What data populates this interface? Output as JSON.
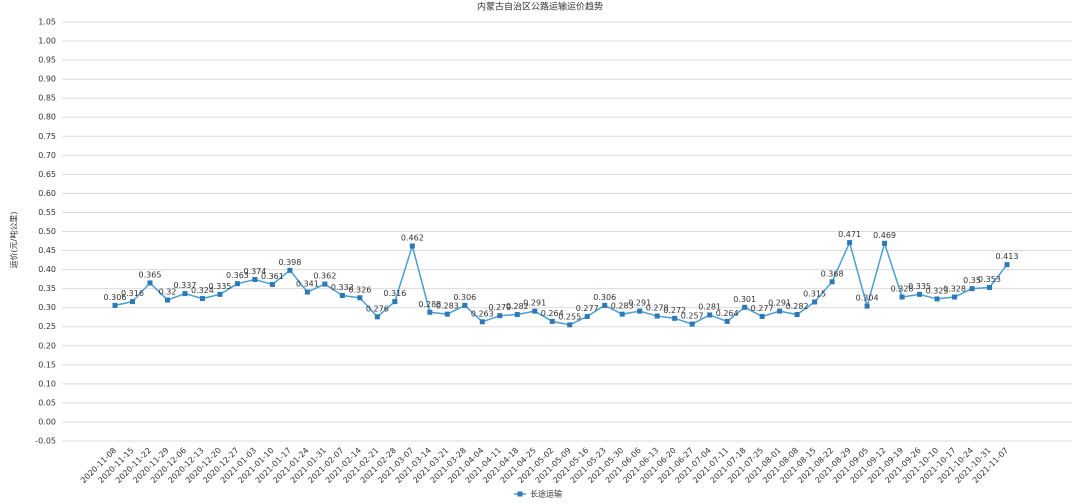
{
  "chart_data": {
    "type": "line",
    "title": "内蒙古自治区公路运输运价趋势",
    "y_label": "运价(元/吨公里)",
    "categories": [
      "2020-11-08",
      "2020-11-15",
      "2020-11-22",
      "2020-11-29",
      "2020-12-06",
      "2020-12-13",
      "2020-12-20",
      "2020-12-27",
      "2021-01-03",
      "2021-01-10",
      "2021-01-17",
      "2021-01-24",
      "2021-01-31",
      "2021-02-07",
      "2021-02-14",
      "2021-02-21",
      "2021-02-28",
      "2021-03-07",
      "2021-03-14",
      "2021-03-21",
      "2021-03-28",
      "2021-04-04",
      "2021-04-11",
      "2021-04-18",
      "2021-04-25",
      "2021-05-02",
      "2021-05-09",
      "2021-05-16",
      "2021-05-23",
      "2021-05-30",
      "2021-06-06",
      "2021-06-13",
      "2021-06-20",
      "2021-06-27",
      "2021-07-04",
      "2021-07-11",
      "2021-07-18",
      "2021-07-25",
      "2021-08-01",
      "2021-08-08",
      "2021-08-15",
      "2021-08-22",
      "2021-08-29",
      "2021-09-05",
      "2021-09-12",
      "2021-09-19",
      "2021-09-26",
      "2021-10-10",
      "2021-10-17",
      "2021-10-24",
      "2021-10-31",
      "2021-11-07"
    ],
    "series": [
      {
        "name": "长途运输",
        "color": "#4a9fd4",
        "marker_color": "#2f78b8",
        "values": [
          0.306,
          0.316,
          0.365,
          0.32,
          0.337,
          0.324,
          0.335,
          0.363,
          0.374,
          0.361,
          0.398,
          0.341,
          0.362,
          0.332,
          0.326,
          0.276,
          0.316,
          0.462,
          0.288,
          0.283,
          0.306,
          0.263,
          0.279,
          0.282,
          0.291,
          0.264,
          0.255,
          0.277,
          0.306,
          0.283,
          0.291,
          0.278,
          0.272,
          0.257,
          0.281,
          0.264,
          0.301,
          0.277,
          0.291,
          0.282,
          0.315,
          0.368,
          0.471,
          0.304,
          0.469,
          0.328,
          0.335,
          0.323,
          0.328,
          0.35,
          0.353,
          0.413
        ]
      }
    ],
    "ylim": [
      -0.05,
      1.05
    ],
    "yticks": [
      1.05,
      {
        "value": 1,
        "label": "1.00"
      },
      0.95,
      {
        "value": 0.9,
        "label": "0.90"
      },
      0.85,
      {
        "value": 0.8,
        "label": "0.80"
      },
      0.75,
      {
        "value": 0.7,
        "label": "0.70"
      },
      0.65,
      {
        "value": 0.6,
        "label": "0.60"
      },
      0.55,
      {
        "value": 0.5,
        "label": "0.50"
      },
      0.45,
      {
        "value": 0.4,
        "label": "0.40"
      },
      0.35,
      {
        "value": 0.3,
        "label": "0.30"
      },
      0.25,
      {
        "value": 0.2,
        "label": "0.20"
      },
      0.15,
      {
        "value": 0.1,
        "label": "0.10"
      },
      0.05,
      {
        "value": 0,
        "label": "0.00"
      },
      -0.05
    ],
    "grid": true,
    "legend": "bottom"
  }
}
